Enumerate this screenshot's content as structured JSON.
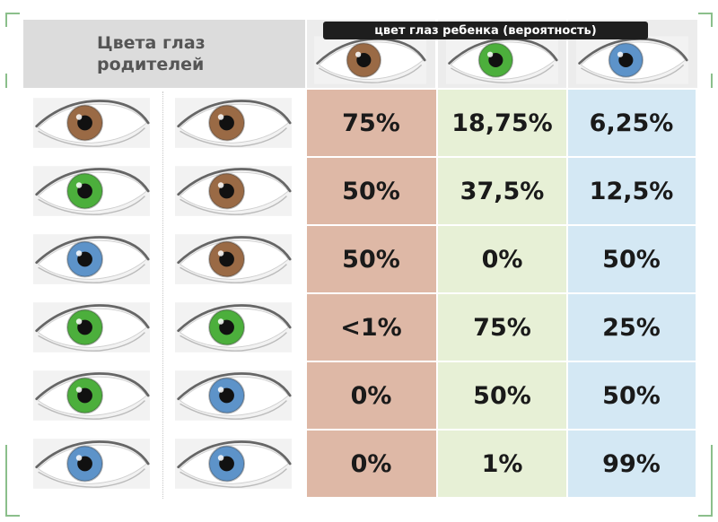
{
  "header": {
    "parents_label": "Цвета глаз родителей",
    "child_label": "цвет глаз ребенка (вероятность)",
    "child_eyes": [
      {
        "icon": "brown-eye-icon",
        "color": "#9a6a45"
      },
      {
        "icon": "green-eye-icon",
        "color": "#4caf3c"
      },
      {
        "icon": "blue-eye-icon",
        "color": "#5d93c9"
      }
    ]
  },
  "colors": {
    "brown": "#9a6a45",
    "green": "#4caf3c",
    "blue": "#5d93c9",
    "col_brown_bg": "#deb8a6",
    "col_green_bg": "#e7f0d6",
    "col_blue_bg": "#d4e8f4"
  },
  "rows": [
    {
      "parent1": "brown-eye-icon",
      "parent2": "brown-eye-icon",
      "brown": "75%",
      "green": "18,75%",
      "blue": "6,25%"
    },
    {
      "parent1": "green-eye-icon",
      "parent2": "brown-eye-icon",
      "brown": "50%",
      "green": "37,5%",
      "blue": "12,5%"
    },
    {
      "parent1": "blue-eye-icon",
      "parent2": "brown-eye-icon",
      "brown": "50%",
      "green": "0%",
      "blue": "50%"
    },
    {
      "parent1": "green-eye-icon",
      "parent2": "green-eye-icon",
      "brown": "<1%",
      "green": "75%",
      "blue": "25%"
    },
    {
      "parent1": "green-eye-icon",
      "parent2": "blue-eye-icon",
      "brown": "0%",
      "green": "50%",
      "blue": "50%"
    },
    {
      "parent1": "blue-eye-icon",
      "parent2": "blue-eye-icon",
      "brown": "0%",
      "green": "1%",
      "blue": "99%"
    }
  ]
}
